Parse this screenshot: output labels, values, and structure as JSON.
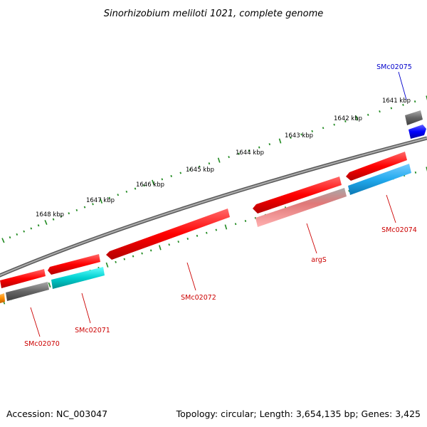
{
  "title": "Sinorhizobium meliloti 1021, complete genome",
  "accession_text": "Accession: NC_003047",
  "summary_text": "Topology: circular; Length: 3,654,135 bp; Genes: 3,425",
  "kbp_labels": [
    "1641 kbp",
    "1642 kbp",
    "1643 kbp",
    "1644 kbp",
    "1645 kbp",
    "1646 kbp",
    "1647 kbp",
    "1648 kbp"
  ],
  "genes": [
    {
      "name": "SMc02075",
      "color": "#0000cc"
    },
    {
      "name": "SMc02074",
      "color": "#cc0000"
    },
    {
      "name": "argS",
      "color": "#cc0000"
    },
    {
      "name": "SMc02072",
      "color": "#cc0000"
    },
    {
      "name": "SMc02071",
      "color": "#cc0000"
    },
    {
      "name": "SMc02070",
      "color": "#cc0000"
    }
  ],
  "colors": {
    "backbone": "#888888",
    "tick": "#228b22",
    "forward": "#ff0000",
    "cyan": "#00cccc",
    "light_blue": "#22aaee",
    "gray": "#666666",
    "pink": "#f08080",
    "blue": "#0000ff",
    "orange": "#ff8c00"
  }
}
